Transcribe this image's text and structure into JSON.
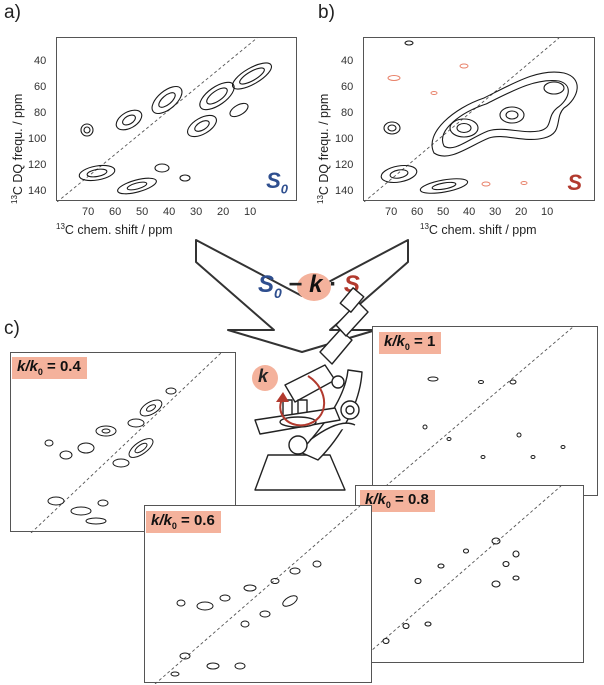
{
  "panel_labels": {
    "a": "a)",
    "b": "b)",
    "c": "c)"
  },
  "top_plots": {
    "y_axis_label_sup": "13",
    "y_axis_label": "C DQ frequ. / ppm",
    "x_axis_label_sup": "13",
    "x_axis_label": "C chem. shift / ppm",
    "x_ticks": [
      "70",
      "60",
      "50",
      "40",
      "30",
      "20",
      "10"
    ],
    "y_ticks": [
      "40",
      "60",
      "80",
      "100",
      "120",
      "140"
    ],
    "a_tag": "S",
    "a_tag_sub": "0",
    "b_tag": "S"
  },
  "formula": {
    "s0": "S",
    "s0_sub": "0",
    "minus": "−",
    "k": "k",
    "dot": "·",
    "s": "S"
  },
  "microscope_k": "k",
  "badges": [
    {
      "pre": "k/k",
      "sub": "0",
      "post": " = 0.4"
    },
    {
      "pre": "k/k",
      "sub": "0",
      "post": " = 0.6"
    },
    {
      "pre": "k/k",
      "sub": "0",
      "post": " = 0.8"
    },
    {
      "pre": "k/k",
      "sub": "0",
      "post": " = 1"
    }
  ],
  "colors": {
    "s0_blue": "#2f4f8f",
    "s_red": "#b23a2e",
    "badge_salmon": "#f4b29c",
    "negative_contour": "#e8826a",
    "contour": "#1a1a1a"
  }
}
